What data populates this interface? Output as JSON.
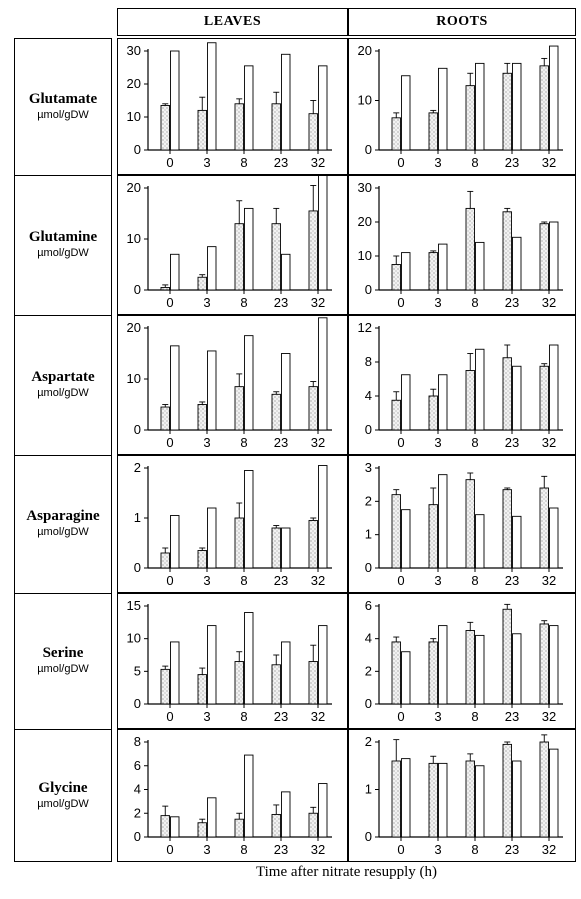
{
  "headers": {
    "leaves": "LEAVES",
    "roots": "ROOTS"
  },
  "x_axis_title": "Time after nitrate resupply (h)",
  "rows": [
    {
      "name": "Glutamate",
      "unit": "µmol/gDW"
    },
    {
      "name": "Glutamine",
      "unit": "µmol/gDW"
    },
    {
      "name": "Aspartate",
      "unit": "µmol/gDW"
    },
    {
      "name": "Asparagine",
      "unit": "µmol/gDW"
    },
    {
      "name": "Serine",
      "unit": "µmol/gDW"
    },
    {
      "name": "Glycine",
      "unit": "µmol/gDW"
    }
  ],
  "chart_data": [
    {
      "type": "bar",
      "panel": "Glutamate leaves",
      "categories": [
        "0",
        "3",
        "8",
        "23",
        "32"
      ],
      "ylim": [
        0,
        30
      ],
      "yticks": [
        0,
        10,
        20,
        30
      ],
      "series": [
        {
          "values": [
            13.5,
            12,
            14,
            14,
            11
          ],
          "errors": [
            0.5,
            4,
            1.5,
            3.5,
            4
          ]
        },
        {
          "values": [
            30,
            32.5,
            25.5,
            29,
            25.5
          ]
        }
      ]
    },
    {
      "type": "bar",
      "panel": "Glutamate roots",
      "categories": [
        "0",
        "3",
        "8",
        "23",
        "32"
      ],
      "ylim": [
        0,
        20
      ],
      "yticks": [
        0,
        10,
        20
      ],
      "series": [
        {
          "values": [
            6.5,
            7.5,
            13,
            15.5,
            17
          ],
          "errors": [
            1,
            0.5,
            2.5,
            2,
            1.5
          ]
        },
        {
          "values": [
            15,
            16.5,
            17.5,
            17.5,
            21
          ]
        }
      ]
    },
    {
      "type": "bar",
      "panel": "Glutamine leaves",
      "categories": [
        "0",
        "3",
        "8",
        "23",
        "32"
      ],
      "ylim": [
        0,
        20
      ],
      "yticks": [
        0,
        10,
        20
      ],
      "series": [
        {
          "values": [
            0.5,
            2.5,
            13,
            13,
            15.5
          ],
          "errors": [
            0.5,
            0.5,
            4.5,
            3,
            5
          ]
        },
        {
          "values": [
            7,
            8.5,
            16,
            7,
            23.5
          ]
        }
      ]
    },
    {
      "type": "bar",
      "panel": "Glutamine roots",
      "categories": [
        "0",
        "3",
        "8",
        "23",
        "32"
      ],
      "ylim": [
        0,
        30
      ],
      "yticks": [
        0,
        10,
        20,
        30
      ],
      "series": [
        {
          "values": [
            7.5,
            11,
            24,
            23,
            19.5
          ],
          "errors": [
            2.5,
            0.5,
            5,
            1,
            0.5
          ]
        },
        {
          "values": [
            11,
            13.5,
            14,
            15.5,
            20
          ]
        }
      ]
    },
    {
      "type": "bar",
      "panel": "Aspartate leaves",
      "categories": [
        "0",
        "3",
        "8",
        "23",
        "32"
      ],
      "ylim": [
        0,
        20
      ],
      "yticks": [
        0,
        10,
        20
      ],
      "series": [
        {
          "values": [
            4.5,
            5,
            8.5,
            7,
            8.5
          ],
          "errors": [
            0.5,
            0.5,
            2.5,
            0.5,
            1
          ]
        },
        {
          "values": [
            16.5,
            15.5,
            18.5,
            15,
            22
          ]
        }
      ]
    },
    {
      "type": "bar",
      "panel": "Aspartate roots",
      "categories": [
        "0",
        "3",
        "8",
        "23",
        "32"
      ],
      "ylim": [
        0,
        12
      ],
      "yticks": [
        0,
        4,
        8,
        12
      ],
      "series": [
        {
          "values": [
            3.5,
            4,
            7,
            8.5,
            7.5
          ],
          "errors": [
            1,
            0.8,
            2,
            1.5,
            0.3
          ]
        },
        {
          "values": [
            6.5,
            6.5,
            9.5,
            7.5,
            10
          ]
        }
      ]
    },
    {
      "type": "bar",
      "panel": "Asparagine leaves",
      "categories": [
        "0",
        "3",
        "8",
        "23",
        "32"
      ],
      "ylim": [
        0,
        2
      ],
      "yticks": [
        0,
        1,
        2
      ],
      "series": [
        {
          "values": [
            0.3,
            0.35,
            1.0,
            0.8,
            0.95
          ],
          "errors": [
            0.1,
            0.05,
            0.3,
            0.05,
            0.05
          ]
        },
        {
          "values": [
            1.05,
            1.2,
            1.95,
            0.8,
            2.05
          ]
        }
      ]
    },
    {
      "type": "bar",
      "panel": "Asparagine roots",
      "categories": [
        "0",
        "3",
        "8",
        "23",
        "32"
      ],
      "ylim": [
        0,
        3
      ],
      "yticks": [
        0,
        1,
        2,
        3
      ],
      "series": [
        {
          "values": [
            2.2,
            1.9,
            2.65,
            2.35,
            2.4
          ],
          "errors": [
            0.15,
            0.5,
            0.2,
            0.05,
            0.35
          ]
        },
        {
          "values": [
            1.75,
            2.8,
            1.6,
            1.55,
            1.8
          ]
        }
      ]
    },
    {
      "type": "bar",
      "panel": "Serine leaves",
      "categories": [
        "0",
        "3",
        "8",
        "23",
        "32"
      ],
      "ylim": [
        0,
        15
      ],
      "yticks": [
        0,
        5,
        10,
        15
      ],
      "series": [
        {
          "values": [
            5.3,
            4.5,
            6.5,
            6,
            6.5
          ],
          "errors": [
            0.5,
            1,
            1.5,
            1.5,
            2.5
          ]
        },
        {
          "values": [
            9.5,
            12,
            14,
            9.5,
            12
          ]
        }
      ]
    },
    {
      "type": "bar",
      "panel": "Serine roots",
      "categories": [
        "0",
        "3",
        "8",
        "23",
        "32"
      ],
      "ylim": [
        0,
        6
      ],
      "yticks": [
        0,
        2,
        4,
        6
      ],
      "series": [
        {
          "values": [
            3.8,
            3.8,
            4.5,
            5.8,
            4.9
          ],
          "errors": [
            0.3,
            0.2,
            0.5,
            0.3,
            0.2
          ]
        },
        {
          "values": [
            3.2,
            4.8,
            4.2,
            4.3,
            4.8
          ]
        }
      ]
    },
    {
      "type": "bar",
      "panel": "Glycine leaves",
      "categories": [
        "0",
        "3",
        "8",
        "23",
        "32"
      ],
      "ylim": [
        0,
        8
      ],
      "yticks": [
        0,
        2,
        4,
        6,
        8
      ],
      "series": [
        {
          "values": [
            1.8,
            1.2,
            1.5,
            1.9,
            2.0
          ],
          "errors": [
            0.8,
            0.3,
            0.5,
            0.8,
            0.5
          ]
        },
        {
          "values": [
            1.7,
            3.3,
            6.9,
            3.8,
            4.5
          ]
        }
      ]
    },
    {
      "type": "bar",
      "panel": "Glycine roots",
      "categories": [
        "0",
        "3",
        "8",
        "23",
        "32"
      ],
      "ylim": [
        0,
        2
      ],
      "yticks": [
        0,
        1,
        2
      ],
      "series": [
        {
          "values": [
            1.6,
            1.55,
            1.6,
            1.95,
            2.0
          ],
          "errors": [
            0.45,
            0.15,
            0.15,
            0.05,
            0.15
          ]
        },
        {
          "values": [
            1.65,
            1.55,
            1.5,
            1.6,
            1.85
          ]
        }
      ]
    }
  ]
}
